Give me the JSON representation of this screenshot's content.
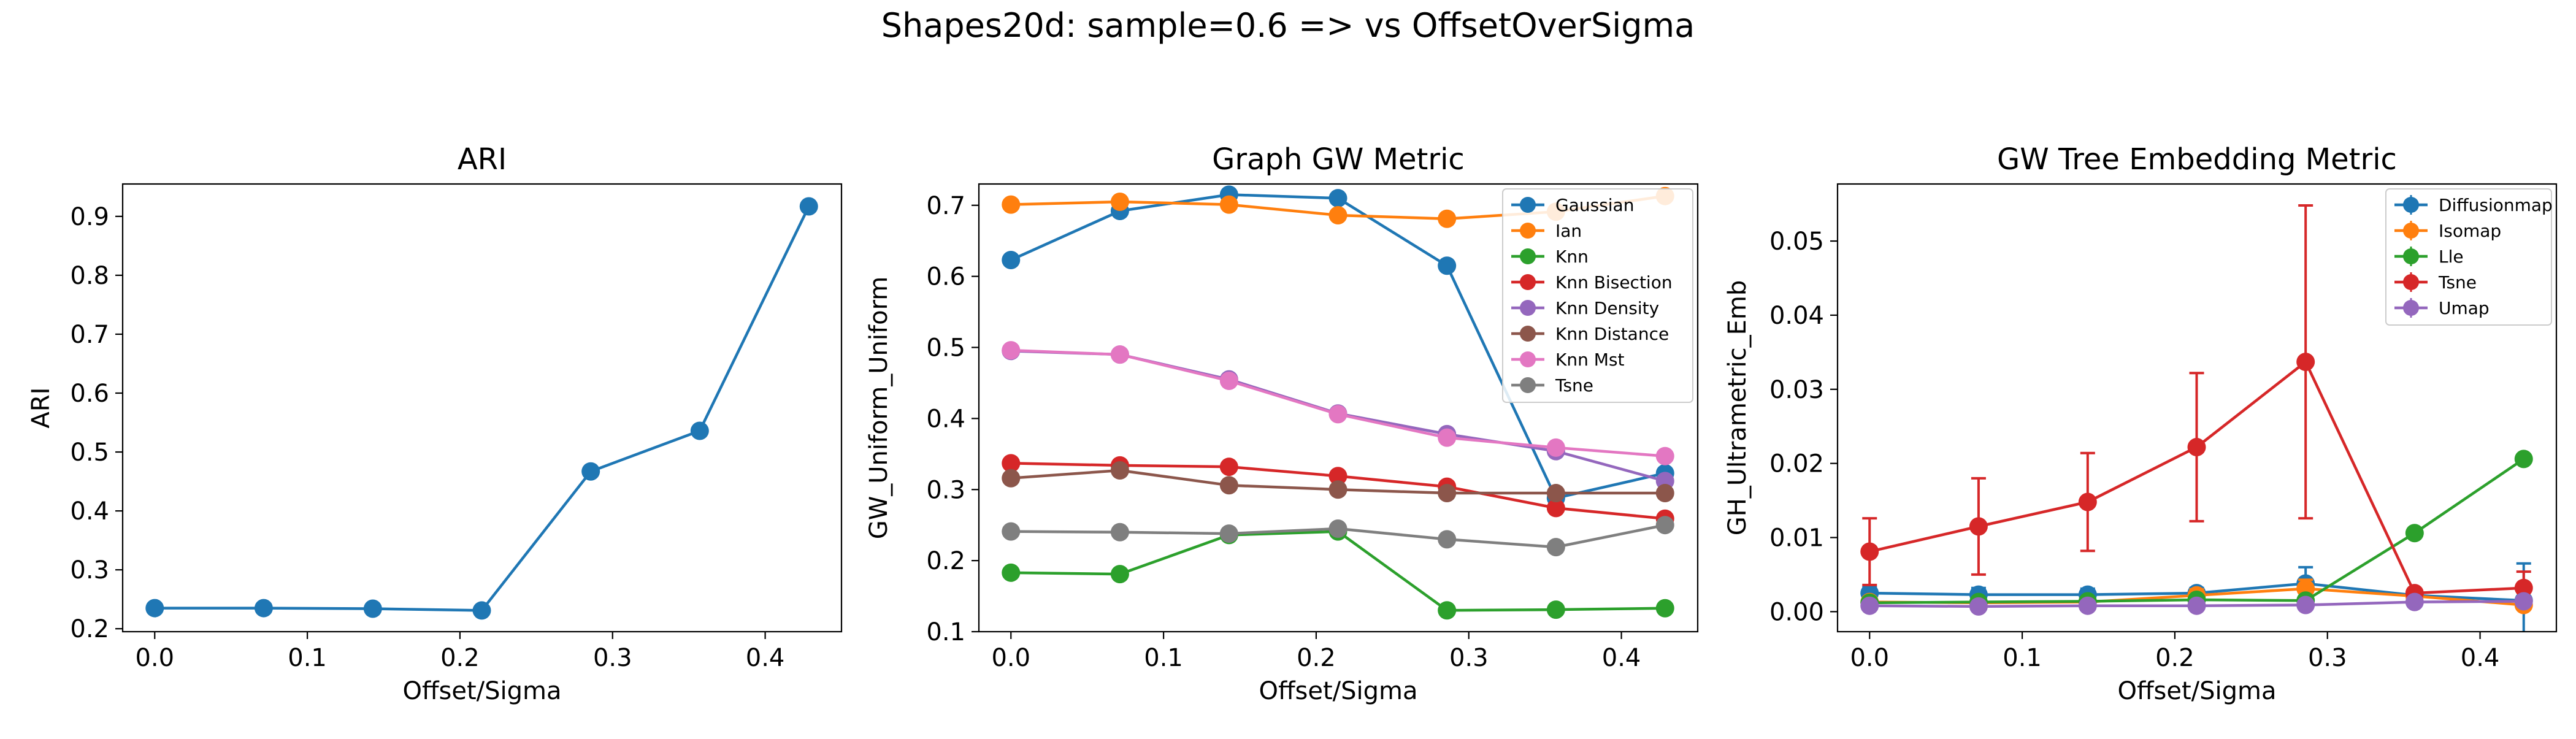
{
  "figure": {
    "suptitle": "Shapes20d: sample=0.6 => vs OffsetOverSigma"
  },
  "chart_data": [
    {
      "type": "line",
      "title": "ARI",
      "xlabel": "Offset/Sigma",
      "ylabel": "ARI",
      "xlim": [
        -0.021,
        0.45
      ],
      "ylim": [
        0.195,
        0.955
      ],
      "xticks": [
        0.0,
        0.1,
        0.2,
        0.3,
        0.4
      ],
      "yticks": [
        0.2,
        0.3,
        0.4,
        0.5,
        0.6,
        0.7,
        0.8,
        0.9
      ],
      "x": [
        0.0,
        0.0714,
        0.1429,
        0.2143,
        0.2857,
        0.3571,
        0.4286
      ],
      "grid": false,
      "series": [
        {
          "name": "",
          "color": "#1f77b4",
          "values": [
            0.235,
            0.235,
            0.234,
            0.231,
            0.467,
            0.536,
            0.917
          ]
        }
      ]
    },
    {
      "type": "line",
      "title": "Graph GW Metric",
      "xlabel": "Offset/Sigma",
      "ylabel": "GW_Uniform_Uniform",
      "xlim": [
        -0.021,
        0.45
      ],
      "ylim": [
        0.1,
        0.73
      ],
      "xticks": [
        0.0,
        0.1,
        0.2,
        0.3,
        0.4
      ],
      "yticks": [
        0.1,
        0.2,
        0.3,
        0.4,
        0.5,
        0.6,
        0.7
      ],
      "x": [
        0.0,
        0.0714,
        0.1429,
        0.2143,
        0.2857,
        0.3571,
        0.4286
      ],
      "grid": false,
      "legend": "top-right",
      "series": [
        {
          "name": "Gaussian",
          "color": "#1f77b4",
          "values": [
            0.623,
            0.692,
            0.715,
            0.71,
            0.615,
            0.288,
            0.323
          ]
        },
        {
          "name": "Ian",
          "color": "#ff7f0e",
          "values": [
            0.701,
            0.705,
            0.701,
            0.686,
            0.681,
            0.691,
            0.713
          ]
        },
        {
          "name": "Knn",
          "color": "#2ca02c",
          "values": [
            0.183,
            0.181,
            0.236,
            0.241,
            0.13,
            0.131,
            0.133
          ]
        },
        {
          "name": "Knn Bisection",
          "color": "#d62728",
          "values": [
            0.337,
            0.334,
            0.332,
            0.319,
            0.304,
            0.274,
            0.259
          ]
        },
        {
          "name": "Knn Density",
          "color": "#9467bd",
          "values": [
            0.495,
            0.49,
            0.455,
            0.407,
            0.378,
            0.354,
            0.312
          ]
        },
        {
          "name": "Knn Distance",
          "color": "#8c564b",
          "values": [
            0.316,
            0.327,
            0.306,
            0.3,
            0.295,
            0.295,
            0.295
          ]
        },
        {
          "name": "Knn Mst",
          "color": "#e377c2",
          "values": [
            0.496,
            0.49,
            0.453,
            0.406,
            0.373,
            0.359,
            0.347
          ]
        },
        {
          "name": "Tsne",
          "color": "#7f7f7f",
          "values": [
            0.241,
            0.24,
            0.238,
            0.245,
            0.23,
            0.219,
            0.25
          ]
        }
      ]
    },
    {
      "type": "line",
      "title": "GW Tree Embedding Metric",
      "xlabel": "Offset/Sigma",
      "ylabel": "GH_Ultrametric_Emb",
      "xlim": [
        -0.021,
        0.45
      ],
      "ylim": [
        -0.0027,
        0.0577
      ],
      "xticks": [
        0.0,
        0.1,
        0.2,
        0.3,
        0.4
      ],
      "yticks": [
        0.0,
        0.01,
        0.02,
        0.03,
        0.04,
        0.05
      ],
      "ytick_labels": [
        "0.00",
        "0.01",
        "0.02",
        "0.03",
        "0.04",
        "0.05"
      ],
      "x": [
        0.0,
        0.0714,
        0.1429,
        0.2143,
        0.2857,
        0.3571,
        0.4286
      ],
      "grid": false,
      "legend": "top-right",
      "series": [
        {
          "name": "Diffusionmap",
          "color": "#1f77b4",
          "values": [
            0.0025,
            0.0023,
            0.0023,
            0.0025,
            0.0038,
            0.0022,
            0.0015
          ],
          "err": [
            0.0008,
            0.0009,
            0.0008,
            0.0007,
            0.0022,
            0.0004,
            0.005
          ]
        },
        {
          "name": "Isomap",
          "color": "#ff7f0e",
          "values": [
            0.0013,
            0.0012,
            0.0013,
            0.0022,
            0.0031,
            0.0021,
            0.0009
          ],
          "err": [
            0.0003,
            0.0003,
            0.0003,
            0.0008,
            0.0012,
            0.0005,
            0.0003
          ]
        },
        {
          "name": "Lle",
          "color": "#2ca02c",
          "values": [
            0.0012,
            0.0013,
            0.0014,
            0.0016,
            0.0015,
            0.0106,
            0.0206
          ],
          "err": [
            0.0002,
            0.0002,
            0.0002,
            0.0002,
            0.0002,
            0.0004,
            0.0004
          ]
        },
        {
          "name": "Tsne",
          "color": "#d62728",
          "values": [
            0.0081,
            0.0115,
            0.0148,
            0.0222,
            0.0337,
            0.0025,
            0.0032
          ],
          "err": [
            0.0045,
            0.0065,
            0.0066,
            0.01,
            0.0211,
            0.0006,
            0.0022
          ]
        },
        {
          "name": "Umap",
          "color": "#9467bd",
          "values": [
            0.0008,
            0.0007,
            0.0008,
            0.0008,
            0.0009,
            0.0013,
            0.0014
          ],
          "err": [
            0.0002,
            0.0002,
            0.0002,
            0.0002,
            0.0002,
            0.0003,
            0.0003
          ]
        }
      ]
    }
  ]
}
